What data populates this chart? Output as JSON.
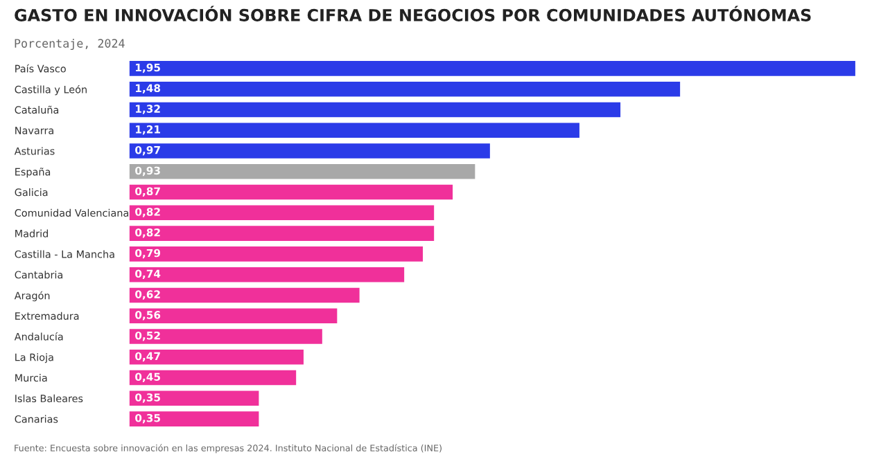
{
  "chart_data": {
    "type": "bar",
    "orientation": "horizontal",
    "title": "GASTO EN INNOVACIÓN SOBRE CIFRA DE NEGOCIOS POR COMUNIDADES AUTÓNOMAS",
    "subtitle": "Porcentaje, 2024",
    "categories": [
      "País Vasco",
      "Castilla y León",
      "Cataluña",
      "Navarra",
      "Asturias",
      "España",
      "Galicia",
      "Comunidad Valenciana",
      "Madrid",
      "Castilla - La Mancha",
      "Cantabria",
      "Aragón",
      "Extremadura",
      "Andalucía",
      "La Rioja",
      "Murcia",
      "Islas Baleares",
      "Canarias"
    ],
    "values": [
      1.95,
      1.48,
      1.32,
      1.21,
      0.97,
      0.93,
      0.87,
      0.82,
      0.82,
      0.79,
      0.74,
      0.62,
      0.56,
      0.52,
      0.47,
      0.45,
      0.35,
      0.35
    ],
    "value_labels": [
      "1,95",
      "1,48",
      "1,32",
      "1,21",
      "0,97",
      "0,93",
      "0,87",
      "0,82",
      "0,82",
      "0,79",
      "0,74",
      "0,62",
      "0,56",
      "0,52",
      "0,47",
      "0,45",
      "0,35",
      "0,35"
    ],
    "colors": [
      "#2b3be8",
      "#2b3be8",
      "#2b3be8",
      "#2b3be8",
      "#2b3be8",
      "#a8a8a8",
      "#f0309a",
      "#f0309a",
      "#f0309a",
      "#f0309a",
      "#f0309a",
      "#f0309a",
      "#f0309a",
      "#f0309a",
      "#f0309a",
      "#f0309a",
      "#f0309a",
      "#f0309a"
    ],
    "annotations": [
      "Fuente: Encuesta sobre innovación en las empresas 2024. Instituto Nacional de Estadística (INE)"
    ],
    "grid": false,
    "legend": false
  }
}
